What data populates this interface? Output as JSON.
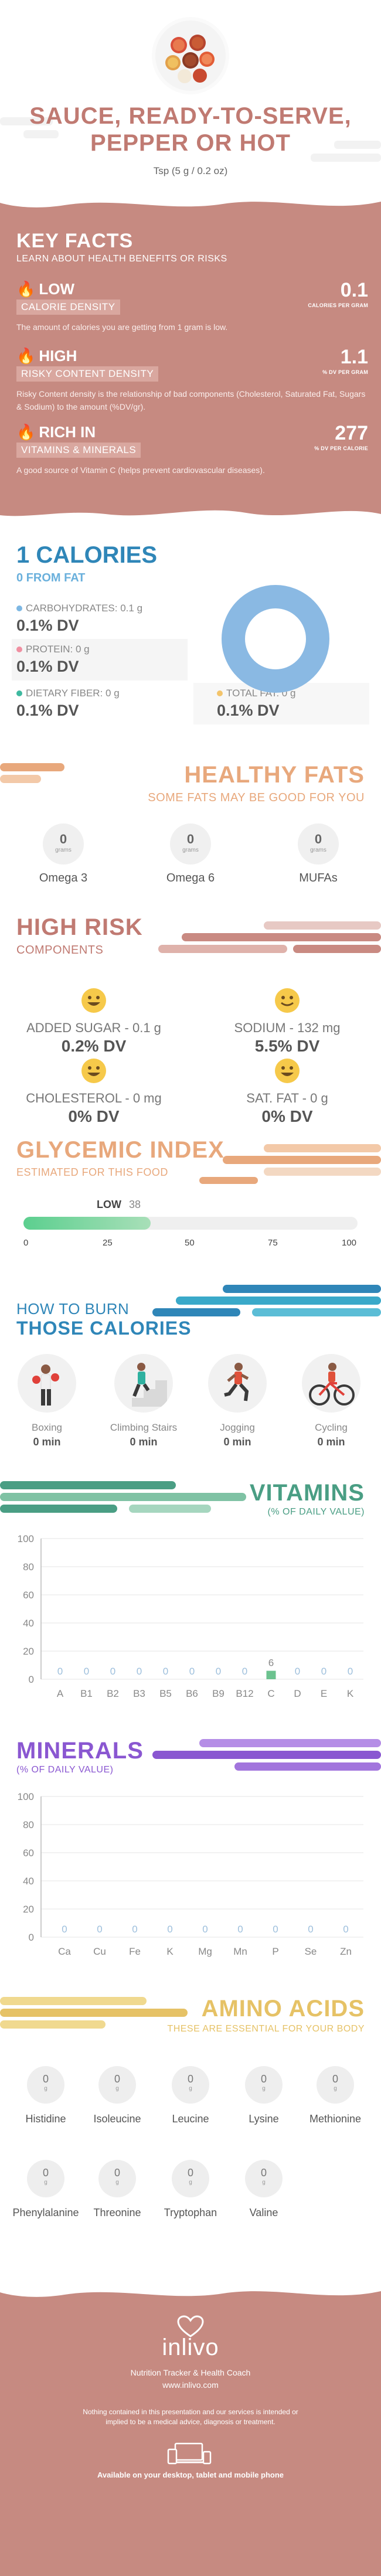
{
  "header": {
    "title_line1": "SAUCE, READY-TO-SERVE,",
    "title_line2": "PEPPER OR HOT",
    "serving": "Tsp (5 g / 0.2 oz)"
  },
  "key_facts": {
    "title": "KEY FACTS",
    "subtitle": "LEARN ABOUT HEALTH BENEFITS OR RISKS",
    "items": [
      {
        "level": "LOW",
        "label": "CALORIE DENSITY",
        "value": "0.1",
        "unit": "CALORIES PER GRAM",
        "description": "The amount of calories you are getting from 1 gram is low."
      },
      {
        "level": "HIGH",
        "label": "RISKY CONTENT DENSITY",
        "value": "1.1",
        "unit": "% DV PER GRAM",
        "description": "Risky Content density is the relationship of bad components (Cholesterol, Saturated Fat, Sugars & Sodium) to the amount (%DV/gr)."
      },
      {
        "level": "RICH  IN",
        "label": "VITAMINS & MINERALS",
        "value": "277",
        "unit": "% DV PER CALORIE",
        "description": "A good source of Vitamin C (helps prevent cardiovascular diseases)."
      }
    ]
  },
  "calories": {
    "title": "1 CALORIES",
    "from_fat": "0 FROM FAT",
    "nutrients": [
      {
        "label": "CARBOHYDRATES: 0.1 g",
        "dv": "0.1% DV",
        "color": "#7db7e3"
      },
      {
        "label": "PROTEIN: 0 g",
        "dv": "0.1% DV",
        "color": "#f08fa1"
      },
      {
        "label": "DIETARY FIBER: 0 g",
        "dv": "0.1% DV",
        "color": "#3fb9a0"
      },
      {
        "label": "TOTAL FAT: 0 g",
        "dv": "0.1% DV",
        "color": "#f3c46b"
      }
    ],
    "donut_color": "#8ab9e3"
  },
  "healthy_fats": {
    "title": "HEALTHY FATS",
    "subtitle": "SOME FATS MAY BE GOOD FOR YOU",
    "items": [
      {
        "value": "0",
        "unit": "grams",
        "name": "Omega 3"
      },
      {
        "value": "0",
        "unit": "grams",
        "name": "Omega 6"
      },
      {
        "value": "0",
        "unit": "grams",
        "name": "MUFAs"
      }
    ]
  },
  "high_risk": {
    "title": "HIGH RISK",
    "subtitle": "COMPONENTS",
    "items": [
      {
        "label": "ADDED SUGAR - 0.1 g",
        "dv": "0.2% DV"
      },
      {
        "label": "SODIUM - 132 mg",
        "dv": "5.5% DV"
      },
      {
        "label": "CHOLESTEROL - 0 mg",
        "dv": "0% DV"
      },
      {
        "label": "SAT. FAT - 0 g",
        "dv": "0% DV"
      }
    ]
  },
  "glycemic": {
    "title": "GLYCEMIC INDEX",
    "subtitle": "ESTIMATED FOR THIS FOOD",
    "level": "LOW",
    "value": 38,
    "value_label": "38",
    "ticks": [
      "0",
      "25",
      "50",
      "75",
      "100"
    ]
  },
  "burn": {
    "title_line1": "HOW TO BURN",
    "title_line2": "THOSE CALORIES",
    "activities": [
      {
        "name": "Boxing",
        "time": "0 min",
        "icon": "boxing-icon"
      },
      {
        "name": "Climbing Stairs",
        "time": "0 min",
        "icon": "climbing-stairs-icon"
      },
      {
        "name": "Jogging",
        "time": "0 min",
        "icon": "jogging-icon"
      },
      {
        "name": "Cycling",
        "time": "0 min",
        "icon": "cycling-icon"
      }
    ]
  },
  "vitamins": {
    "title": "VITAMINS",
    "subtitle": "(% OF DAILY VALUE)"
  },
  "minerals": {
    "title": "MINERALS",
    "subtitle": "(% OF DAILY VALUE)"
  },
  "chart_data": [
    {
      "type": "bar",
      "categories": [
        "A",
        "B1",
        "B2",
        "B3",
        "B5",
        "B6",
        "B9",
        "B12",
        "C",
        "D",
        "E",
        "K"
      ],
      "values": [
        0,
        0,
        0,
        0,
        0,
        0,
        0,
        0,
        6,
        0,
        0,
        0
      ],
      "value_labels": [
        "0",
        "0",
        "0",
        "0",
        "0",
        "0",
        "0",
        "0",
        "6",
        "0",
        "0",
        "0"
      ],
      "yticks": [
        "0",
        "20",
        "40",
        "60",
        "80",
        "100"
      ],
      "ylim": [
        0,
        100
      ],
      "grid": true
    },
    {
      "type": "bar",
      "categories": [
        "Ca",
        "Cu",
        "Fe",
        "K",
        "Mg",
        "Mn",
        "P",
        "Se",
        "Zn"
      ],
      "values": [
        0,
        0,
        0,
        0,
        0,
        0,
        0,
        0,
        0
      ],
      "value_labels": [
        "0",
        "0",
        "0",
        "0",
        "0",
        "0",
        "0",
        "0",
        "0"
      ],
      "yticks": [
        "0",
        "20",
        "40",
        "60",
        "80",
        "100"
      ],
      "ylim": [
        0,
        100
      ],
      "grid": true
    }
  ],
  "amino": {
    "title": "AMINO ACIDS",
    "subtitle": "THESE ARE ESSENTIAL FOR YOUR BODY",
    "items": [
      {
        "name": "Histidine",
        "value": "0",
        "unit": "g"
      },
      {
        "name": "Isoleucine",
        "value": "0",
        "unit": "g"
      },
      {
        "name": "Leucine",
        "value": "0",
        "unit": "g"
      },
      {
        "name": "Lysine",
        "value": "0",
        "unit": "g"
      },
      {
        "name": "Methionine",
        "value": "0",
        "unit": "g"
      },
      {
        "name": "Phenylalanine",
        "value": "0",
        "unit": "g"
      },
      {
        "name": "Threonine",
        "value": "0",
        "unit": "g"
      },
      {
        "name": "Tryptophan",
        "value": "0",
        "unit": "g"
      },
      {
        "name": "Valine",
        "value": "0",
        "unit": "g"
      }
    ]
  },
  "footer": {
    "logo": "inlivo",
    "tagline": "Nutrition Tracker & Health Coach",
    "url": "www.inlivo.com",
    "disclaimer": "Nothing contained in this presentation and our services is intended or implied to be a medical advice, diagnosis or treatment.",
    "available": "Available on your desktop, tablet and mobile phone"
  },
  "colors": {
    "brand": "#c68a81",
    "blue": "#2f86b8",
    "orange": "#e8a87c",
    "green": "#4a9e84",
    "purple": "#8a57d1",
    "gold": "#e6c266"
  }
}
